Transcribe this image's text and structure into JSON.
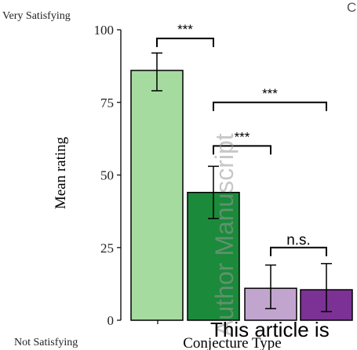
{
  "chart_data": {
    "type": "bar",
    "categories": [
      "",
      "",
      "",
      ""
    ],
    "values": [
      86,
      44,
      11,
      10.5
    ],
    "error_low": [
      79,
      35,
      4,
      3
    ],
    "error_high": [
      92,
      53,
      19,
      19.5
    ],
    "colors": [
      "#a6dba0",
      "#1b8a3a",
      "#c2a5cf",
      "#7b3294"
    ],
    "ylabel": "Mean rating",
    "xlabel": "Conjecture Type",
    "ylim": [
      0,
      100
    ],
    "yticks": [
      0,
      25,
      50,
      75,
      100
    ],
    "scale_top_label": "Very Satisfying",
    "scale_bottom_label": "Not Satisfying",
    "grid": false,
    "comparisons": [
      {
        "from": 0,
        "to": 1,
        "label": "***",
        "y": 97
      },
      {
        "from": 1,
        "to": 3,
        "label": "***",
        "y": 75
      },
      {
        "from": 1,
        "to": 2,
        "label": "***",
        "y": 60
      },
      {
        "from": 2,
        "to": 3,
        "label": "n.s.",
        "y": 25
      }
    ]
  },
  "watermark": {
    "vertical": "Author Manuscript",
    "bottom": "This article is",
    "corner": "C"
  }
}
